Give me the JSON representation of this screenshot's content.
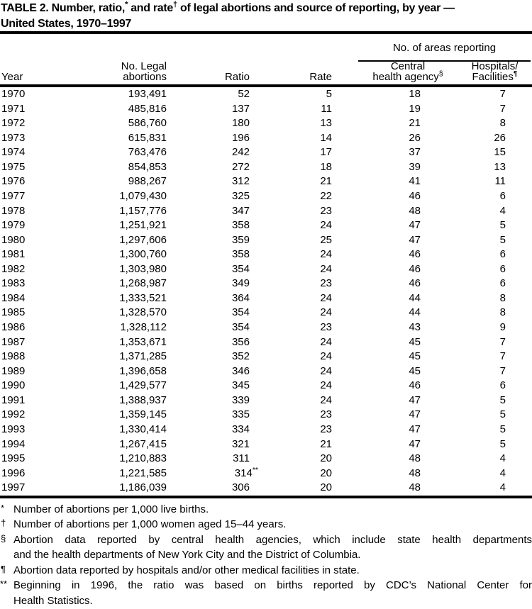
{
  "title": {
    "parts": [
      {
        "text": "TABLE 2. Number, ratio,"
      },
      {
        "sup": "*"
      },
      {
        "text": " and rate"
      },
      {
        "sup": "†"
      },
      {
        "text": " of legal abortions and source of reporting, by year —"
      },
      {
        "break": true
      },
      {
        "text": "United States, 1970–1997"
      }
    ]
  },
  "table": {
    "headers": {
      "year": "Year",
      "abortions_line1": "No. Legal",
      "abortions_line2": "abortions",
      "ratio": "Ratio",
      "rate": "Rate",
      "spanner": "No. of areas reporting",
      "central_line1": "Central",
      "central_line2": "health agency",
      "central_marker": "§",
      "hospitals_line1": "Hospitals/",
      "hospitals_line2": "Facilities",
      "hospitals_marker": "¶"
    },
    "rows": [
      {
        "year": "1970",
        "abortions": "193,491",
        "ratio": "52",
        "rate": "5",
        "central": "18",
        "hospitals": "7"
      },
      {
        "year": "1971",
        "abortions": "485,816",
        "ratio": "137",
        "rate": "11",
        "central": "19",
        "hospitals": "7"
      },
      {
        "year": "1972",
        "abortions": "586,760",
        "ratio": "180",
        "rate": "13",
        "central": "21",
        "hospitals": "8"
      },
      {
        "year": "1973",
        "abortions": "615,831",
        "ratio": "196",
        "rate": "14",
        "central": "26",
        "hospitals": "26"
      },
      {
        "year": "1974",
        "abortions": "763,476",
        "ratio": "242",
        "rate": "17",
        "central": "37",
        "hospitals": "15"
      },
      {
        "year": "1975",
        "abortions": "854,853",
        "ratio": "272",
        "rate": "18",
        "central": "39",
        "hospitals": "13"
      },
      {
        "year": "1976",
        "abortions": "988,267",
        "ratio": "312",
        "rate": "21",
        "central": "41",
        "hospitals": "11"
      },
      {
        "year": "1977",
        "abortions": "1,079,430",
        "ratio": "325",
        "rate": "22",
        "central": "46",
        "hospitals": "6"
      },
      {
        "year": "1978",
        "abortions": "1,157,776",
        "ratio": "347",
        "rate": "23",
        "central": "48",
        "hospitals": "4"
      },
      {
        "year": "1979",
        "abortions": "1,251,921",
        "ratio": "358",
        "rate": "24",
        "central": "47",
        "hospitals": "5"
      },
      {
        "year": "1980",
        "abortions": "1,297,606",
        "ratio": "359",
        "rate": "25",
        "central": "47",
        "hospitals": "5"
      },
      {
        "year": "1981",
        "abortions": "1,300,760",
        "ratio": "358",
        "rate": "24",
        "central": "46",
        "hospitals": "6"
      },
      {
        "year": "1982",
        "abortions": "1,303,980",
        "ratio": "354",
        "rate": "24",
        "central": "46",
        "hospitals": "6"
      },
      {
        "year": "1983",
        "abortions": "1,268,987",
        "ratio": "349",
        "rate": "23",
        "central": "46",
        "hospitals": "6"
      },
      {
        "year": "1984",
        "abortions": "1,333,521",
        "ratio": "364",
        "rate": "24",
        "central": "44",
        "hospitals": "8"
      },
      {
        "year": "1985",
        "abortions": "1,328,570",
        "ratio": "354",
        "rate": "24",
        "central": "44",
        "hospitals": "8"
      },
      {
        "year": "1986",
        "abortions": "1,328,112",
        "ratio": "354",
        "rate": "23",
        "central": "43",
        "hospitals": "9"
      },
      {
        "year": "1987",
        "abortions": "1,353,671",
        "ratio": "356",
        "rate": "24",
        "central": "45",
        "hospitals": "7"
      },
      {
        "year": "1988",
        "abortions": "1,371,285",
        "ratio": "352",
        "rate": "24",
        "central": "45",
        "hospitals": "7"
      },
      {
        "year": "1989",
        "abortions": "1,396,658",
        "ratio": "346",
        "rate": "24",
        "central": "45",
        "hospitals": "7"
      },
      {
        "year": "1990",
        "abortions": "1,429,577",
        "ratio": "345",
        "rate": "24",
        "central": "46",
        "hospitals": "6"
      },
      {
        "year": "1991",
        "abortions": "1,388,937",
        "ratio": "339",
        "rate": "24",
        "central": "47",
        "hospitals": "5"
      },
      {
        "year": "1992",
        "abortions": "1,359,145",
        "ratio": "335",
        "rate": "23",
        "central": "47",
        "hospitals": "5"
      },
      {
        "year": "1993",
        "abortions": "1,330,414",
        "ratio": "334",
        "rate": "23",
        "central": "47",
        "hospitals": "5"
      },
      {
        "year": "1994",
        "abortions": "1,267,415",
        "ratio": "321",
        "rate": "21",
        "central": "47",
        "hospitals": "5"
      },
      {
        "year": "1995",
        "abortions": "1,210,883",
        "ratio": "311",
        "rate": "20",
        "central": "48",
        "hospitals": "4"
      },
      {
        "year": "1996",
        "abortions": "1,221,585",
        "ratio": "314",
        "ratio_marker": "**",
        "rate": "20",
        "central": "48",
        "hospitals": "4"
      },
      {
        "year": "1997",
        "abortions": "1,186,039",
        "ratio": "306",
        "rate": "20",
        "central": "48",
        "hospitals": "4"
      }
    ]
  },
  "footnotes": [
    {
      "marker": "*",
      "lines": [
        {
          "text": "Number of abortions per 1,000 live births.",
          "justify": false
        }
      ]
    },
    {
      "marker": "†",
      "lines": [
        {
          "text": "Number of abortions per 1,000 women aged 15–44 years.",
          "justify": false
        }
      ]
    },
    {
      "marker": "§",
      "lines": [
        {
          "text": "Abortion data reported by central health agencies, which include state health departments",
          "justify": true
        },
        {
          "text": "and the health departments of New York City and the District of Columbia.",
          "justify": false
        }
      ]
    },
    {
      "marker": "¶",
      "lines": [
        {
          "text": "Abortion data reported by hospitals and/or other medical facilities in state.",
          "justify": false
        }
      ]
    },
    {
      "marker": "**",
      "lines": [
        {
          "text": "Beginning in 1996, the ratio was based on births reported by CDC’s National Center for",
          "justify": true
        },
        {
          "text": "Health Statistics.",
          "justify": false
        }
      ]
    }
  ],
  "colors": {
    "text": "#000000",
    "background": "#ffffff",
    "rule": "#000000"
  }
}
